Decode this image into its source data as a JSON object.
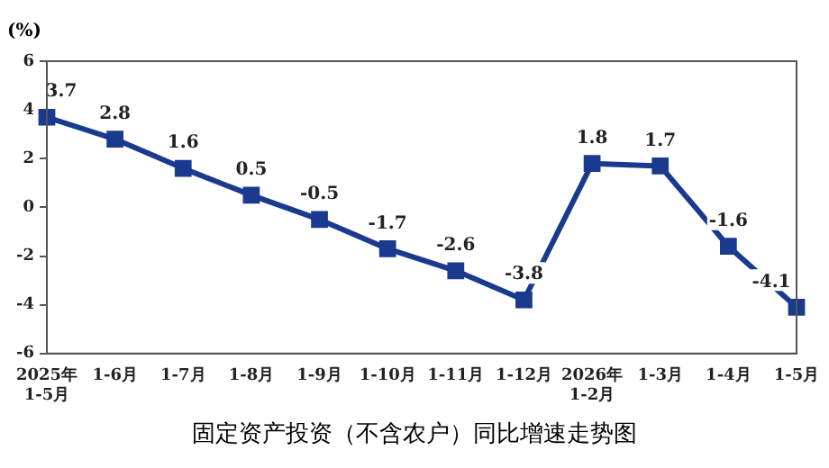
{
  "chart_data": {
    "type": "line",
    "title": "固定资产投资（不含农户）同比增速走势图",
    "ylabel": "(%)",
    "categories": [
      "2025年\n1-5月",
      "1-6月",
      "1-7月",
      "1-8月",
      "1-9月",
      "1-10月",
      "1-11月",
      "1-12月",
      "2026年\n1-2月",
      "1-3月",
      "1-4月",
      "1-5月"
    ],
    "series": [
      {
        "color": "#1a3a8f",
        "values": [
          3.7,
          2.8,
          1.6,
          0.5,
          -0.5,
          -1.7,
          -2.6,
          -3.8,
          1.8,
          1.7,
          -1.6,
          -4.1
        ]
      }
    ],
    "ylim": [
      -6,
      6
    ],
    "yticks": [
      -6,
      -4,
      -2,
      0,
      2,
      4,
      6
    ],
    "data_labels": true,
    "marker": "square",
    "grid": false,
    "legend": false
  }
}
